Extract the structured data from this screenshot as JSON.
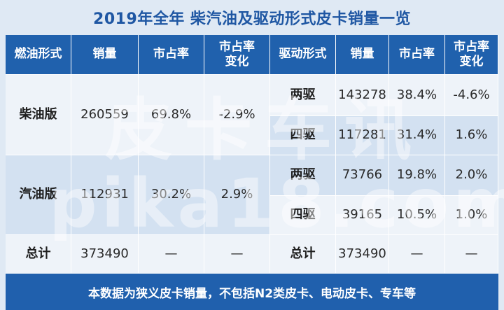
{
  "title": "2019年全年 柴汽油及驱动形式皮卡销量一览",
  "headers": {
    "fuel_type": "燃油形式",
    "sales": "销量",
    "share": "市占率",
    "share_change": "市占率\n变化",
    "drive_type": "驱动形式",
    "sales2": "销量",
    "share2": "市占率",
    "share_change2": "市占率\n变化"
  },
  "fuel_rows": [
    {
      "type": "柴油版",
      "sales": "260559",
      "share": "69.8%",
      "change": "-2.9%"
    },
    {
      "type": "汽油版",
      "sales": "112931",
      "share": "30.2%",
      "change": "2.9%"
    }
  ],
  "drive_rows": [
    {
      "type": "两驱",
      "sales": "143278",
      "share": "38.4%",
      "change": "-4.6%"
    },
    {
      "type": "四驱",
      "sales": "117281",
      "share": "31.4%",
      "change": "1.6%"
    },
    {
      "type": "两驱",
      "sales": "73766",
      "share": "19.8%",
      "change": "2.0%"
    },
    {
      "type": "四驱",
      "sales": "39165",
      "share": "10.5%",
      "change": "1.0%"
    }
  ],
  "total": {
    "label": "总计",
    "sales": "373490",
    "share": "—",
    "change": "—",
    "label2": "总计",
    "sales2": "373490",
    "share2": "—",
    "change2": "—"
  },
  "footnote": "本数据为狭义皮卡销量，不包括N2类皮卡、电动皮卡、专车等",
  "watermark": {
    "line1": "皮卡车讯",
    "line2": "pika18.com"
  },
  "colors": {
    "header_bg": "#2061ad",
    "title": "#1f57a3",
    "row_alt": "#d3e1f1",
    "row_light": "#eef3f9",
    "page_bg": "#dfe9f4"
  }
}
